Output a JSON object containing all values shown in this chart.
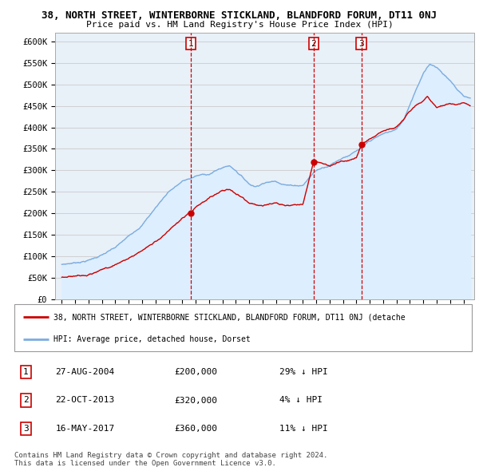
{
  "title": "38, NORTH STREET, WINTERBORNE STICKLAND, BLANDFORD FORUM, DT11 0NJ",
  "subtitle": "Price paid vs. HM Land Registry's House Price Index (HPI)",
  "ylabel_ticks": [
    "£0",
    "£50K",
    "£100K",
    "£150K",
    "£200K",
    "£250K",
    "£300K",
    "£350K",
    "£400K",
    "£450K",
    "£500K",
    "£550K",
    "£600K"
  ],
  "ylim": [
    0,
    620000
  ],
  "ytick_vals": [
    0,
    50000,
    100000,
    150000,
    200000,
    250000,
    300000,
    350000,
    400000,
    450000,
    500000,
    550000,
    600000
  ],
  "xmin": 1994.5,
  "xmax": 2025.8,
  "hpi_color": "#7aace0",
  "hpi_fill_color": "#ddeeff",
  "price_color": "#cc0000",
  "transactions": [
    {
      "label": "1",
      "date_dec": 2004.65,
      "price": 200000
    },
    {
      "label": "2",
      "date_dec": 2013.81,
      "price": 320000
    },
    {
      "label": "3",
      "date_dec": 2017.37,
      "price": 360000
    }
  ],
  "legend_property_label": "38, NORTH STREET, WINTERBORNE STICKLAND, BLANDFORD FORUM, DT11 0NJ (detache",
  "legend_hpi_label": "HPI: Average price, detached house, Dorset",
  "table_rows": [
    {
      "num": "1",
      "date": "27-AUG-2004",
      "price": "£200,000",
      "hpi_rel": "29% ↓ HPI"
    },
    {
      "num": "2",
      "date": "22-OCT-2013",
      "price": "£320,000",
      "hpi_rel": "4% ↓ HPI"
    },
    {
      "num": "3",
      "date": "16-MAY-2017",
      "price": "£360,000",
      "hpi_rel": "11% ↓ HPI"
    }
  ],
  "footnote": "Contains HM Land Registry data © Crown copyright and database right 2024.\nThis data is licensed under the Open Government Licence v3.0.",
  "grid_color": "#cccccc"
}
